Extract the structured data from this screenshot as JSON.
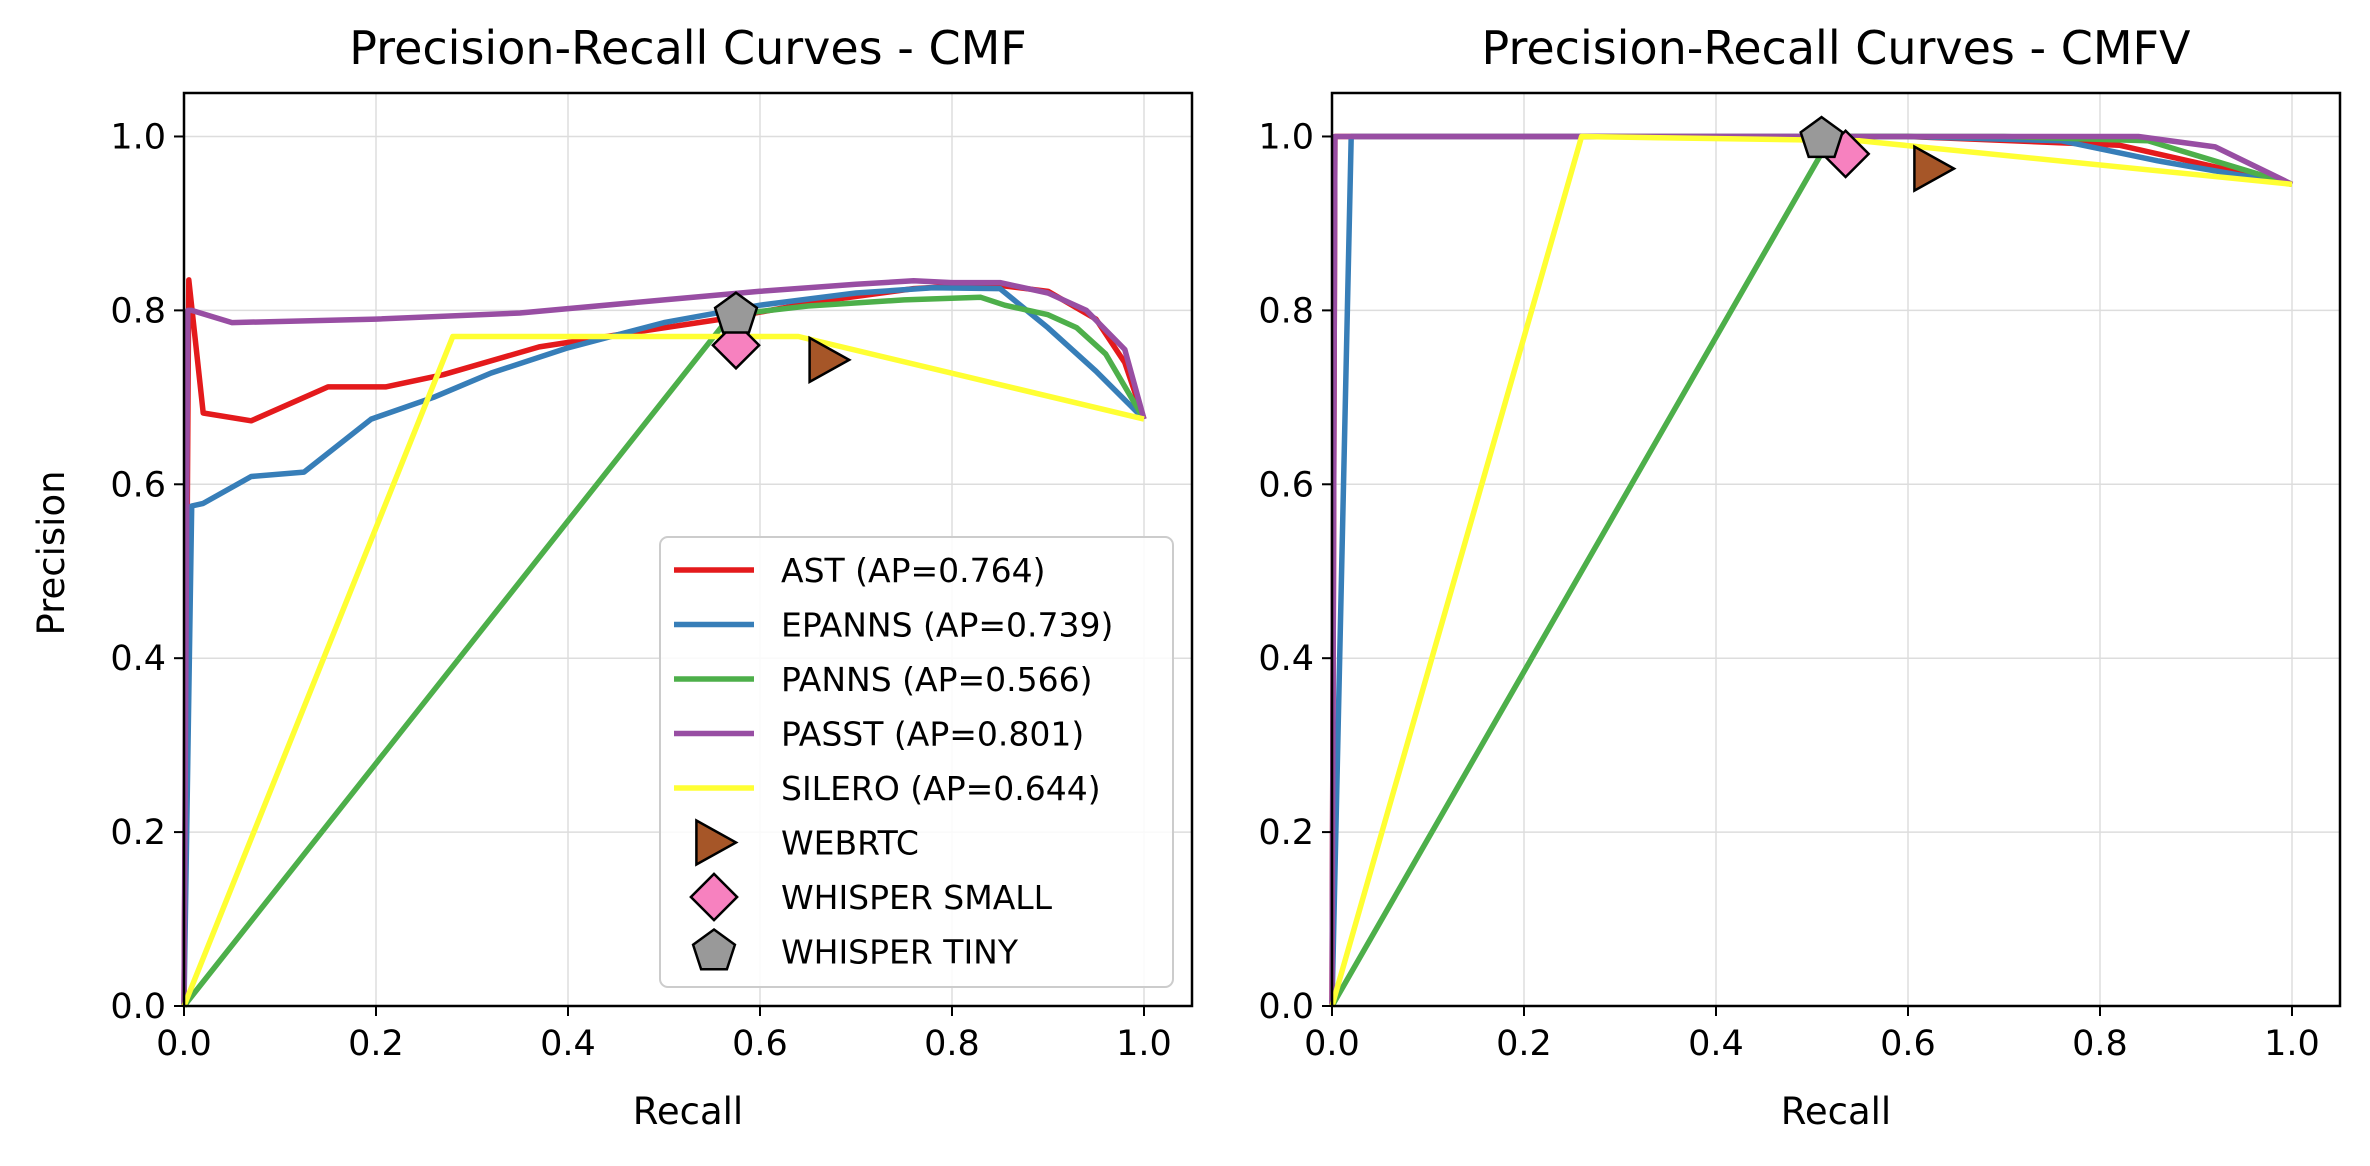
{
  "chart_data": [
    {
      "type": "line",
      "title": "Precision-Recall Curves - CMF",
      "xlabel": "Recall",
      "ylabel": "Precision",
      "xlim": [
        0,
        1.05
      ],
      "ylim": [
        0,
        1.05
      ],
      "xticks": [
        "0.0",
        "0.2",
        "0.4",
        "0.6",
        "0.8",
        "1.0"
      ],
      "yticks": [
        "0.0",
        "0.2",
        "0.4",
        "0.6",
        "0.8",
        "1.0"
      ],
      "grid": true,
      "legend_position": "lower-right",
      "series": [
        {
          "name": "AST (AP=0.764)",
          "color": "#e41a1c",
          "x": [
            0.0,
            0.005,
            0.02,
            0.07,
            0.15,
            0.21,
            0.27,
            0.37,
            0.47,
            0.56,
            0.66,
            0.76,
            0.84,
            0.9,
            0.95,
            0.98,
            1.0
          ],
          "y": [
            0.0,
            0.835,
            0.682,
            0.673,
            0.712,
            0.712,
            0.726,
            0.758,
            0.775,
            0.79,
            0.81,
            0.825,
            0.83,
            0.822,
            0.79,
            0.74,
            0.675
          ]
        },
        {
          "name": "EPANNS (AP=0.739)",
          "color": "#377eb8",
          "x": [
            0.0,
            0.008,
            0.02,
            0.07,
            0.125,
            0.195,
            0.26,
            0.32,
            0.4,
            0.5,
            0.6,
            0.7,
            0.78,
            0.85,
            0.9,
            0.95,
            1.0
          ],
          "y": [
            0.0,
            0.575,
            0.578,
            0.609,
            0.614,
            0.675,
            0.7,
            0.728,
            0.757,
            0.786,
            0.806,
            0.82,
            0.826,
            0.825,
            0.78,
            0.73,
            0.675
          ]
        },
        {
          "name": "PANNS (AP=0.566)",
          "color": "#4daf4a",
          "x": [
            0.0,
            0.57,
            0.65,
            0.75,
            0.83,
            0.855,
            0.9,
            0.93,
            0.96,
            1.0
          ],
          "y": [
            0.0,
            0.795,
            0.805,
            0.812,
            0.815,
            0.806,
            0.795,
            0.78,
            0.75,
            0.675
          ]
        },
        {
          "name": "PASST (AP=0.801)",
          "color": "#984ea3",
          "x": [
            0.0,
            0.004,
            0.008,
            0.05,
            0.2,
            0.35,
            0.5,
            0.6,
            0.7,
            0.76,
            0.8,
            0.85,
            0.9,
            0.94,
            0.98,
            1.0
          ],
          "y": [
            0.0,
            0.8,
            0.8,
            0.786,
            0.79,
            0.797,
            0.812,
            0.822,
            0.83,
            0.834,
            0.832,
            0.832,
            0.82,
            0.8,
            0.755,
            0.675
          ]
        },
        {
          "name": "SILERO (AP=0.644)",
          "color": "#ffff33",
          "x": [
            0.0,
            0.28,
            0.57,
            0.64,
            1.0
          ],
          "y": [
            0.0,
            0.77,
            0.77,
            0.77,
            0.675
          ]
        }
      ],
      "markers": [
        {
          "name": "WEBRTC",
          "shape": "triangle-right",
          "color": "#a65628",
          "x": 0.67,
          "y": 0.743
        },
        {
          "name": "WHISPER SMALL",
          "shape": "diamond",
          "color": "#f781bf",
          "x": 0.575,
          "y": 0.76
        },
        {
          "name": "WHISPER TINY",
          "shape": "pentagon",
          "color": "#999999",
          "x": 0.575,
          "y": 0.795
        }
      ]
    },
    {
      "type": "line",
      "title": "Precision-Recall Curves - CMFV",
      "xlabel": "Recall",
      "ylabel": "",
      "xlim": [
        0,
        1.05
      ],
      "ylim": [
        0,
        1.05
      ],
      "xticks": [
        "0.0",
        "0.2",
        "0.4",
        "0.6",
        "0.8",
        "1.0"
      ],
      "yticks": [
        "0.0",
        "0.2",
        "0.4",
        "0.6",
        "0.8",
        "1.0"
      ],
      "grid": true,
      "series": [
        {
          "name": "AST (AP=0.764)",
          "color": "#e41a1c",
          "x": [
            0.0,
            0.003,
            0.3,
            0.6,
            0.82,
            0.9,
            1.0
          ],
          "y": [
            0.0,
            1.0,
            1.0,
            1.0,
            0.99,
            0.97,
            0.945
          ]
        },
        {
          "name": "EPANNS (AP=0.739)",
          "color": "#377eb8",
          "x": [
            0.0,
            0.02,
            0.3,
            0.6,
            0.76,
            0.86,
            1.0
          ],
          "y": [
            0.0,
            1.0,
            1.0,
            1.0,
            0.995,
            0.972,
            0.945
          ]
        },
        {
          "name": "PANNS (AP=0.566)",
          "color": "#4daf4a",
          "x": [
            0.0,
            0.52,
            0.7,
            0.85,
            1.0
          ],
          "y": [
            0.0,
            1.0,
            1.0,
            0.995,
            0.945
          ]
        },
        {
          "name": "PASST (AP=0.801)",
          "color": "#984ea3",
          "x": [
            0.0,
            0.003,
            0.3,
            0.6,
            0.84,
            0.92,
            1.0
          ],
          "y": [
            0.0,
            1.0,
            1.0,
            1.0,
            1.0,
            0.988,
            0.945
          ]
        },
        {
          "name": "SILERO (AP=0.644)",
          "color": "#ffff33",
          "x": [
            0.0,
            0.26,
            0.55,
            1.0
          ],
          "y": [
            0.0,
            1.0,
            0.995,
            0.945
          ]
        }
      ],
      "markers": [
        {
          "name": "WEBRTC",
          "shape": "triangle-right",
          "color": "#a65628",
          "x": 0.625,
          "y": 0.963
        },
        {
          "name": "WHISPER SMALL",
          "shape": "diamond",
          "color": "#f781bf",
          "x": 0.535,
          "y": 0.98
        },
        {
          "name": "WHISPER TINY",
          "shape": "pentagon",
          "color": "#999999",
          "x": 0.51,
          "y": 0.997
        }
      ]
    }
  ]
}
